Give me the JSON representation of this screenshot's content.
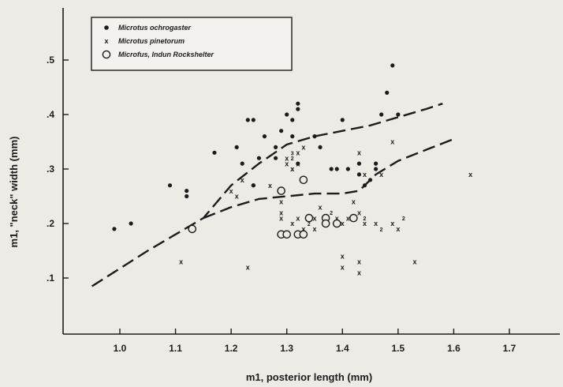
{
  "chart_data": {
    "type": "scatter",
    "title": "",
    "xlabel": "m1, posterior length (mm)",
    "ylabel": "m1, \"neck\" width (mm)",
    "xlim": [
      0.9,
      1.8
    ],
    "ylim": [
      0.0,
      0.58
    ],
    "xticks": [
      "1.0",
      "1.1",
      "1.2",
      "1.3",
      "1.4",
      "1.5",
      "1.6",
      "1.7"
    ],
    "xtick_values": [
      1.0,
      1.1,
      1.2,
      1.3,
      1.4,
      1.5,
      1.6,
      1.7
    ],
    "yticks": [
      ".1",
      ".2",
      ".3",
      ".4",
      ".5"
    ],
    "ytick_values": [
      0.1,
      0.2,
      0.3,
      0.4,
      0.5
    ],
    "grid": false,
    "legend_position": "top-left",
    "series": [
      {
        "name": "Microtus ochrogaster",
        "marker": "filled-dot",
        "points": [
          [
            0.99,
            0.19
          ],
          [
            1.02,
            0.2
          ],
          [
            1.09,
            0.27
          ],
          [
            1.12,
            0.26
          ],
          [
            1.12,
            0.25
          ],
          [
            1.17,
            0.33
          ],
          [
            1.21,
            0.34
          ],
          [
            1.22,
            0.31
          ],
          [
            1.23,
            0.39
          ],
          [
            1.24,
            0.39
          ],
          [
            1.24,
            0.27
          ],
          [
            1.24,
            0.27
          ],
          [
            1.25,
            0.32
          ],
          [
            1.26,
            0.36
          ],
          [
            1.28,
            0.32
          ],
          [
            1.28,
            0.34
          ],
          [
            1.29,
            0.37
          ],
          [
            1.3,
            0.4
          ],
          [
            1.31,
            0.39
          ],
          [
            1.31,
            0.36
          ],
          [
            1.32,
            0.42
          ],
          [
            1.32,
            0.41
          ],
          [
            1.32,
            0.31
          ],
          [
            1.33,
            0.28
          ],
          [
            1.35,
            0.36
          ],
          [
            1.36,
            0.34
          ],
          [
            1.38,
            0.3
          ],
          [
            1.39,
            0.3
          ],
          [
            1.4,
            0.39
          ],
          [
            1.41,
            0.3
          ],
          [
            1.43,
            0.31
          ],
          [
            1.43,
            0.29
          ],
          [
            1.44,
            0.27
          ],
          [
            1.45,
            0.28
          ],
          [
            1.46,
            0.31
          ],
          [
            1.47,
            0.4
          ],
          [
            1.48,
            0.44
          ],
          [
            1.49,
            0.49
          ],
          [
            1.5,
            0.4
          ],
          [
            1.46,
            0.3
          ]
        ]
      },
      {
        "name": "Microtus pinetorum",
        "marker": "x",
        "points": [
          [
            1.11,
            0.13
          ],
          [
            1.2,
            0.26
          ],
          [
            1.21,
            0.25
          ],
          [
            1.22,
            0.28
          ],
          [
            1.23,
            0.12
          ],
          [
            1.27,
            0.27
          ],
          [
            1.29,
            0.22
          ],
          [
            1.29,
            0.21
          ],
          [
            1.3,
            0.32
          ],
          [
            1.3,
            0.31
          ],
          [
            1.31,
            0.3
          ],
          [
            1.31,
            0.3
          ],
          [
            1.32,
            0.33
          ],
          [
            1.32,
            0.31
          ],
          [
            1.33,
            0.34
          ],
          [
            1.32,
            0.21
          ],
          [
            1.31,
            0.2
          ],
          [
            1.33,
            0.19
          ],
          [
            1.35,
            0.21
          ],
          [
            1.35,
            0.19
          ],
          [
            1.37,
            0.21
          ],
          [
            1.39,
            0.21
          ],
          [
            1.4,
            0.2
          ],
          [
            1.41,
            0.21
          ],
          [
            1.42,
            0.21
          ],
          [
            1.43,
            0.22
          ],
          [
            1.44,
            0.2
          ],
          [
            1.46,
            0.2
          ],
          [
            1.47,
            0.29
          ],
          [
            1.49,
            0.35
          ],
          [
            1.49,
            0.2
          ],
          [
            1.4,
            0.14
          ],
          [
            1.43,
            0.11
          ],
          [
            1.4,
            0.12
          ],
          [
            1.43,
            0.13
          ],
          [
            1.42,
            0.24
          ],
          [
            1.43,
            0.33
          ],
          [
            1.5,
            0.19
          ],
          [
            1.53,
            0.13
          ],
          [
            1.63,
            0.29
          ],
          [
            1.36,
            0.23
          ],
          [
            1.29,
            0.24
          ],
          [
            1.44,
            0.29
          ]
        ],
        "count_labels": [
          [
            1.3,
            0.33,
            "3"
          ],
          [
            1.3,
            0.32,
            "2"
          ],
          [
            1.33,
            0.2,
            "2"
          ],
          [
            1.37,
            0.22,
            "2"
          ],
          [
            1.43,
            0.21,
            "2"
          ],
          [
            1.46,
            0.19,
            "2"
          ],
          [
            1.5,
            0.21,
            "2"
          ]
        ]
      },
      {
        "name": "Microfus, Indun Rockshelter",
        "marker": "open-circle",
        "points": [
          [
            1.13,
            0.19
          ],
          [
            1.29,
            0.26
          ],
          [
            1.33,
            0.28
          ],
          [
            1.29,
            0.18
          ],
          [
            1.3,
            0.18
          ],
          [
            1.32,
            0.18
          ],
          [
            1.33,
            0.18
          ],
          [
            1.34,
            0.21
          ],
          [
            1.37,
            0.21
          ],
          [
            1.37,
            0.2
          ],
          [
            1.39,
            0.2
          ],
          [
            1.42,
            0.21
          ]
        ]
      }
    ],
    "curves": [
      {
        "style": "dashed",
        "points": [
          [
            0.95,
            0.085
          ],
          [
            1.05,
            0.15
          ],
          [
            1.15,
            0.21
          ],
          [
            1.2,
            0.27
          ],
          [
            1.25,
            0.31
          ],
          [
            1.3,
            0.345
          ],
          [
            1.35,
            0.36
          ],
          [
            1.4,
            0.37
          ],
          [
            1.45,
            0.38
          ],
          [
            1.5,
            0.395
          ],
          [
            1.55,
            0.41
          ],
          [
            1.58,
            0.42
          ]
        ]
      },
      {
        "style": "dashed",
        "points": [
          [
            1.15,
            0.21
          ],
          [
            1.2,
            0.23
          ],
          [
            1.25,
            0.245
          ],
          [
            1.3,
            0.25
          ],
          [
            1.35,
            0.255
          ],
          [
            1.4,
            0.255
          ],
          [
            1.43,
            0.26
          ],
          [
            1.46,
            0.29
          ],
          [
            1.5,
            0.315
          ],
          [
            1.55,
            0.335
          ],
          [
            1.6,
            0.355
          ]
        ]
      }
    ]
  }
}
